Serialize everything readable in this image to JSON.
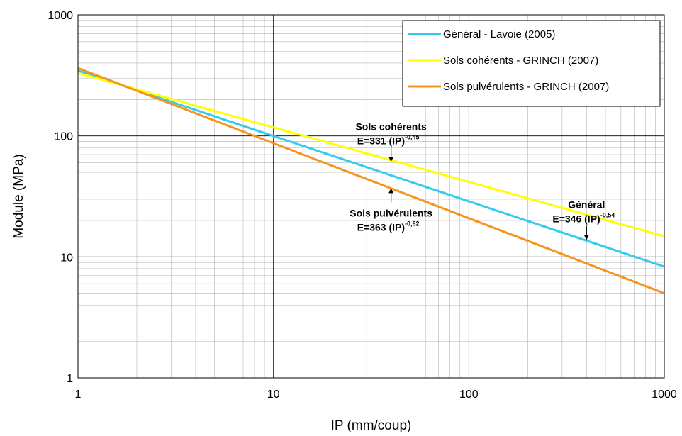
{
  "chart_data": {
    "type": "line",
    "xscale": "log",
    "yscale": "log",
    "xlim": [
      1,
      1000
    ],
    "ylim": [
      1,
      1000
    ],
    "xlabel": "IP (mm/coup)",
    "ylabel": "Module (MPa)",
    "x_ticks": [
      "1",
      "10",
      "100",
      "1000"
    ],
    "y_ticks": [
      "1",
      "10",
      "100",
      "1000"
    ],
    "grid": true,
    "legend_position": "top-right",
    "series": [
      {
        "name": "Général - Lavoie (2005)",
        "color": "#33ccee",
        "x": [
          1,
          1000
        ],
        "y": [
          346,
          8.3
        ]
      },
      {
        "name": "Sols cohérents - GRINCH (2007)",
        "color": "#ffff00",
        "x": [
          1,
          1000
        ],
        "y": [
          331,
          14.8
        ]
      },
      {
        "name": "Sols pulvérulents - GRINCH (2007)",
        "color": "#f7941d",
        "x": [
          1,
          1000
        ],
        "y": [
          363,
          5.0
        ]
      }
    ],
    "annotations": [
      {
        "title": "Sols cohérents",
        "formula": "E=331 (IP)",
        "exponent": "-0,45",
        "arrow_x": 40,
        "arrow_y": 61,
        "arrow_direction": "down"
      },
      {
        "title": "Sols pulvérulents",
        "formula": "E=363 (IP)",
        "exponent": "-0,62",
        "arrow_x": 40,
        "arrow_y": 37,
        "arrow_direction": "up"
      },
      {
        "title": "Général",
        "formula": "E=346 (IP)",
        "exponent": "-0,54",
        "arrow_x": 400,
        "arrow_y": 13.8,
        "arrow_direction": "down"
      }
    ]
  }
}
